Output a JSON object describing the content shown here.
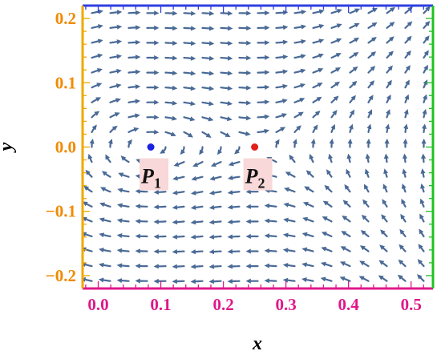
{
  "chart_data": {
    "type": "streamplot",
    "title": "",
    "xlabel": "x",
    "ylabel": "y",
    "xlim": [
      -0.025,
      0.535
    ],
    "ylim": [
      -0.22,
      0.22
    ],
    "x_ticks": [
      "0.0",
      "0.1",
      "0.2",
      "0.3",
      "0.4",
      "0.5"
    ],
    "x_tick_values": [
      0.0,
      0.1,
      0.2,
      0.3,
      0.4,
      0.5
    ],
    "y_ticks": [
      "−0.2",
      "−0.1",
      "0.0",
      "0.1",
      "0.2"
    ],
    "y_tick_values": [
      -0.2,
      -0.1,
      0.0,
      0.1,
      0.2
    ],
    "points": [
      {
        "name": "P",
        "sub": "1",
        "x": 0.084,
        "y": 0.0,
        "color": "#1a22e0",
        "kind": "center"
      },
      {
        "name": "P",
        "sub": "2",
        "x": 0.25,
        "y": 0.0,
        "color": "#e0201a",
        "kind": "saddle"
      }
    ],
    "colors": {
      "stream": "#4a6a96",
      "frame_top": "#2f3fe0",
      "frame_bottom": "#e0188a",
      "frame_left": "#f0a800",
      "frame_right": "#22c022",
      "x_ticks": "#e0188a",
      "y_ticks": "#f08a00",
      "label_box": "#f8d8d8"
    }
  }
}
